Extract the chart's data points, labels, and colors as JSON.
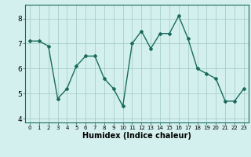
{
  "x": [
    0,
    1,
    2,
    3,
    4,
    5,
    6,
    7,
    8,
    9,
    10,
    11,
    12,
    13,
    14,
    15,
    16,
    17,
    18,
    19,
    20,
    21,
    22,
    23
  ],
  "y": [
    7.1,
    7.1,
    6.9,
    4.8,
    5.2,
    6.1,
    6.5,
    6.5,
    5.6,
    5.2,
    4.5,
    7.0,
    7.5,
    6.8,
    7.4,
    7.4,
    8.1,
    7.2,
    6.0,
    5.8,
    5.6,
    4.7,
    4.7,
    5.2
  ],
  "line_color": "#1a6b5e",
  "marker": "D",
  "marker_size": 2.0,
  "bg_color": "#d4f0ee",
  "grid_color": "#a0c8c4",
  "xlabel": "Humidex (Indice chaleur)",
  "xlim": [
    -0.5,
    23.5
  ],
  "ylim": [
    3.85,
    8.55
  ],
  "yticks": [
    4,
    5,
    6,
    7,
    8
  ],
  "xticks": [
    0,
    1,
    2,
    3,
    4,
    5,
    6,
    7,
    8,
    9,
    10,
    11,
    12,
    13,
    14,
    15,
    16,
    17,
    18,
    19,
    20,
    21,
    22,
    23
  ],
  "xtick_fontsize": 5.0,
  "ytick_fontsize": 6.5,
  "xlabel_fontsize": 7.0,
  "linewidth": 1.0
}
